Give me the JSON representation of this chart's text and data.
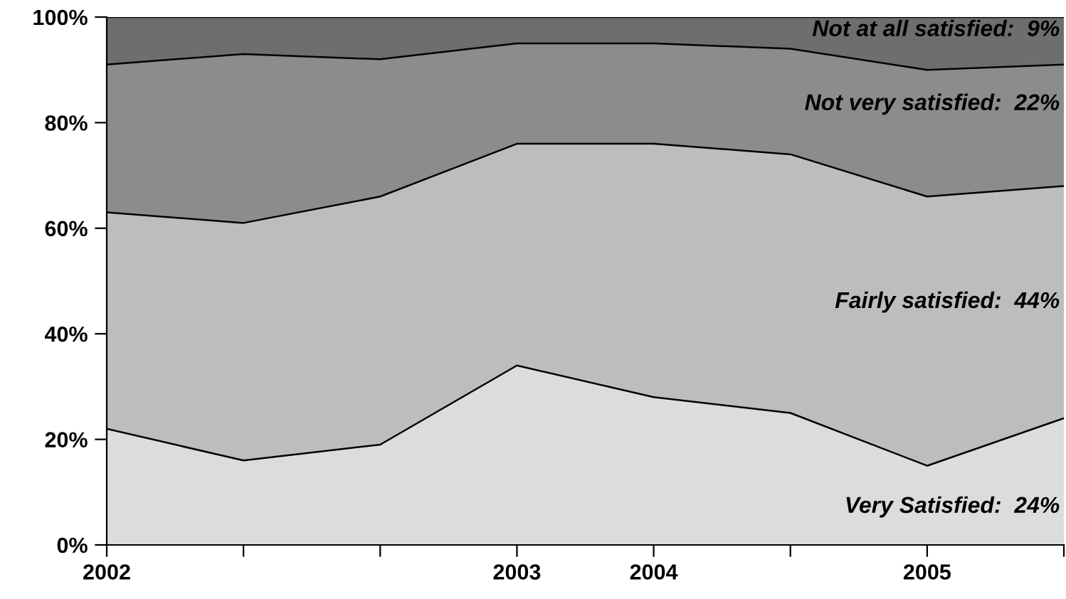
{
  "chart_data": {
    "type": "area",
    "stacked": true,
    "categories": [
      "2002",
      null,
      null,
      "2003",
      "2004",
      null,
      "2005",
      null
    ],
    "series": [
      {
        "color": "#dcdcdc",
        "values": [
          22,
          16,
          19,
          34,
          28,
          25,
          15,
          24
        ]
      },
      {
        "color": "#bdbdbd",
        "values": [
          41,
          45,
          47,
          42,
          48,
          49,
          51,
          44
        ]
      },
      {
        "color": "#8c8c8c",
        "values": [
          28,
          32,
          26,
          19,
          19,
          20,
          24,
          23
        ]
      },
      {
        "color": "#6e6e6e",
        "values": [
          9,
          7,
          8,
          5,
          5,
          6,
          10,
          9
        ]
      }
    ],
    "ylim": [
      0,
      100
    ],
    "yticks": [
      {
        "value": 0,
        "label": "0%"
      },
      {
        "value": 20,
        "label": "20%"
      },
      {
        "value": 40,
        "label": "40%"
      },
      {
        "value": 60,
        "label": "60%"
      },
      {
        "value": 80,
        "label": "80%"
      },
      {
        "value": 100,
        "label": "100%"
      }
    ],
    "annotations": [
      "Very Satisfied:  24%",
      "Fairly satisfied:  44%",
      "Not very satisfied:  22%",
      "Not at all satisfied:  9%"
    ],
    "grid": false
  }
}
